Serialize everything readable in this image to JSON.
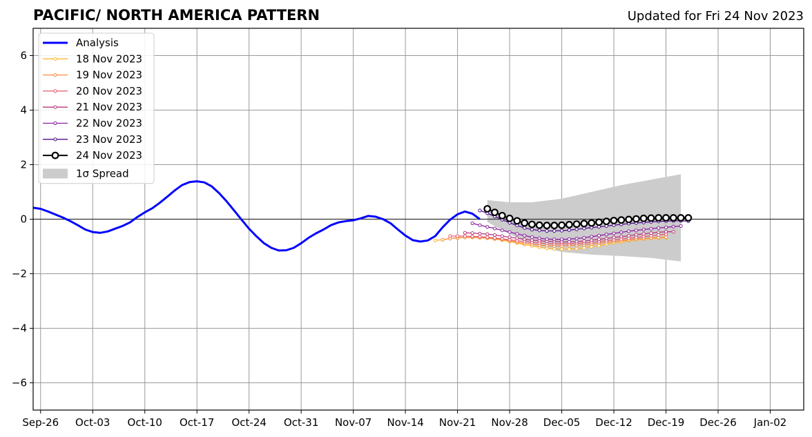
{
  "chart_data": {
    "type": "line",
    "title": "PACIFIC/ NORTH AMERICA PATTERN",
    "subtitle": "Updated for Fri 24 Nov 2023",
    "xlabel": "",
    "ylabel": "",
    "x_ticks": [
      "Sep-26",
      "Oct-03",
      "Oct-10",
      "Oct-17",
      "Oct-24",
      "Oct-31",
      "Nov-07",
      "Nov-14",
      "Nov-21",
      "Nov-28",
      "Dec-05",
      "Dec-12",
      "Dec-19",
      "Dec-26",
      "Jan-02"
    ],
    "x_tick_days": [
      0,
      7,
      14,
      21,
      28,
      35,
      42,
      49,
      56,
      63,
      70,
      77,
      84,
      91,
      98
    ],
    "xlim_days": [
      -1,
      102.5
    ],
    "y_ticks": [
      "−6",
      "−4",
      "−2",
      "0",
      "2",
      "4",
      "6"
    ],
    "y_tick_values": [
      -6,
      -4,
      -2,
      0,
      2,
      4,
      6
    ],
    "ylim": [
      -7,
      7
    ],
    "grid": true,
    "legend_position": "top-left",
    "spread": {
      "name": "1σ Spread",
      "color": "#cccccc",
      "x_days": [
        60,
        63,
        66,
        70,
        74,
        78,
        82,
        86
      ],
      "upper": [
        0.7,
        0.62,
        0.62,
        0.75,
        1.0,
        1.25,
        1.45,
        1.65
      ],
      "lower": [
        -0.1,
        -0.55,
        -0.95,
        -1.2,
        -1.3,
        -1.35,
        -1.42,
        -1.55
      ]
    },
    "series": [
      {
        "name": "Analysis",
        "color": "#0000ff",
        "style": "analysis",
        "x_days": [
          -1,
          0,
          1,
          2,
          3,
          4,
          5,
          6,
          7,
          8,
          9,
          10,
          11,
          12,
          13,
          14,
          15,
          16,
          17,
          18,
          19,
          20,
          21,
          22,
          23,
          24,
          25,
          26,
          27,
          28,
          29,
          30,
          31,
          32,
          33,
          34,
          35,
          36,
          37,
          38,
          39,
          40,
          41,
          42,
          43,
          44,
          45,
          46,
          47,
          48,
          49,
          50,
          51,
          52,
          53,
          54,
          55,
          56,
          57,
          58,
          59
        ],
        "y": [
          0.42,
          0.38,
          0.28,
          0.17,
          0.06,
          -0.07,
          -0.22,
          -0.38,
          -0.47,
          -0.5,
          -0.45,
          -0.35,
          -0.25,
          -0.12,
          0.08,
          0.25,
          0.4,
          0.6,
          0.82,
          1.05,
          1.25,
          1.36,
          1.39,
          1.35,
          1.2,
          0.95,
          0.65,
          0.32,
          -0.02,
          -0.35,
          -0.63,
          -0.88,
          -1.05,
          -1.15,
          -1.14,
          -1.05,
          -0.88,
          -0.68,
          -0.52,
          -0.38,
          -0.22,
          -0.12,
          -0.07,
          -0.04,
          0.03,
          0.12,
          0.09,
          0.0,
          -0.15,
          -0.38,
          -0.6,
          -0.77,
          -0.82,
          -0.78,
          -0.62,
          -0.3,
          -0.02,
          0.18,
          0.28,
          0.2,
          -0.0
        ]
      },
      {
        "name": "18 Nov 2023",
        "color": "#fdb632",
        "style": "forecast",
        "x_days": [
          53,
          54,
          55,
          56,
          57,
          58,
          59,
          60,
          61,
          62,
          63,
          64,
          65,
          66,
          67,
          68,
          69,
          70,
          71,
          72,
          73,
          74,
          75,
          76,
          77,
          78,
          79,
          80,
          81,
          82,
          83,
          84
        ],
        "y": [
          -0.78,
          -0.75,
          -0.71,
          -0.69,
          -0.67,
          -0.67,
          -0.68,
          -0.7,
          -0.73,
          -0.77,
          -0.82,
          -0.88,
          -0.93,
          -0.98,
          -1.03,
          -1.07,
          -1.09,
          -1.1,
          -1.1,
          -1.08,
          -1.05,
          -1.01,
          -0.97,
          -0.92,
          -0.87,
          -0.83,
          -0.79,
          -0.76,
          -0.73,
          -0.71,
          -0.69,
          -0.68
        ]
      },
      {
        "name": "19 Nov 2023",
        "color": "#f78b3e",
        "style": "forecast",
        "x_days": [
          54,
          55,
          56,
          57,
          58,
          59,
          60,
          61,
          62,
          63,
          64,
          65,
          66,
          67,
          68,
          69,
          70,
          71,
          72,
          73,
          74,
          75,
          76,
          77,
          78,
          79,
          80,
          81,
          82,
          83,
          84
        ],
        "y": [
          -0.75,
          -0.71,
          -0.68,
          -0.67,
          -0.66,
          -0.67,
          -0.69,
          -0.72,
          -0.75,
          -0.79,
          -0.84,
          -0.88,
          -0.92,
          -0.95,
          -0.97,
          -0.98,
          -0.98,
          -0.97,
          -0.96,
          -0.94,
          -0.91,
          -0.88,
          -0.85,
          -0.82,
          -0.79,
          -0.76,
          -0.73,
          -0.71,
          -0.69,
          -0.67,
          -0.66
        ]
      },
      {
        "name": "20 Nov 2023",
        "color": "#e2586a",
        "style": "forecast",
        "x_days": [
          55,
          56,
          57,
          58,
          59,
          60,
          61,
          62,
          63,
          64,
          65,
          66,
          67,
          68,
          69,
          70,
          71,
          72,
          73,
          74,
          75,
          76,
          77,
          78,
          79,
          80,
          81,
          82,
          83,
          84
        ],
        "y": [
          -0.62,
          -0.62,
          -0.62,
          -0.63,
          -0.64,
          -0.66,
          -0.69,
          -0.72,
          -0.75,
          -0.79,
          -0.82,
          -0.85,
          -0.87,
          -0.89,
          -0.9,
          -0.9,
          -0.9,
          -0.89,
          -0.87,
          -0.85,
          -0.82,
          -0.79,
          -0.76,
          -0.73,
          -0.7,
          -0.67,
          -0.64,
          -0.61,
          -0.58,
          -0.55
        ]
      },
      {
        "name": "21 Nov 2023",
        "color": "#b7367a",
        "style": "forecast",
        "x_days": [
          57,
          58,
          59,
          60,
          61,
          62,
          63,
          64,
          65,
          66,
          67,
          68,
          69,
          70,
          71,
          72,
          73,
          74,
          75,
          76,
          77,
          78,
          79,
          80,
          81,
          82,
          83,
          84,
          85
        ],
        "y": [
          -0.5,
          -0.51,
          -0.53,
          -0.55,
          -0.58,
          -0.62,
          -0.66,
          -0.7,
          -0.74,
          -0.77,
          -0.79,
          -0.81,
          -0.82,
          -0.83,
          -0.83,
          -0.82,
          -0.8,
          -0.77,
          -0.74,
          -0.71,
          -0.67,
          -0.64,
          -0.61,
          -0.57,
          -0.54,
          -0.51,
          -0.48,
          -0.46,
          -0.46
        ]
      },
      {
        "name": "22 Nov 2023",
        "color": "#8c1ea0",
        "style": "forecast",
        "x_days": [
          58,
          59,
          60,
          61,
          62,
          63,
          64,
          65,
          66,
          67,
          68,
          69,
          70,
          71,
          72,
          73,
          74,
          75,
          76,
          77,
          78,
          79,
          80,
          81,
          82,
          83,
          84,
          85,
          86
        ],
        "y": [
          -0.15,
          -0.22,
          -0.28,
          -0.34,
          -0.41,
          -0.47,
          -0.54,
          -0.6,
          -0.66,
          -0.7,
          -0.73,
          -0.74,
          -0.74,
          -0.73,
          -0.71,
          -0.68,
          -0.64,
          -0.6,
          -0.56,
          -0.52,
          -0.48,
          -0.44,
          -0.41,
          -0.38,
          -0.35,
          -0.32,
          -0.3,
          -0.27,
          -0.25
        ]
      },
      {
        "name": "23 Nov 2023",
        "color": "#4b0c8c",
        "style": "forecast",
        "x_days": [
          59,
          60,
          61,
          62,
          63,
          64,
          65,
          66,
          67,
          68,
          69,
          70,
          71,
          72,
          73,
          74,
          75,
          76,
          77,
          78,
          79,
          80,
          81,
          82,
          83,
          84,
          85,
          86,
          87
        ],
        "y": [
          0.32,
          0.22,
          0.1,
          -0.02,
          -0.13,
          -0.23,
          -0.32,
          -0.38,
          -0.41,
          -0.43,
          -0.43,
          -0.42,
          -0.4,
          -0.37,
          -0.34,
          -0.31,
          -0.28,
          -0.25,
          -0.22,
          -0.19,
          -0.16,
          -0.14,
          -0.12,
          -0.1,
          -0.08,
          -0.07,
          -0.06,
          -0.06,
          -0.07
        ]
      },
      {
        "name": "24 Nov 2023",
        "color": "#000000",
        "style": "current",
        "x_days": [
          60,
          61,
          62,
          63,
          64,
          65,
          66,
          67,
          68,
          69,
          70,
          71,
          72,
          73,
          74,
          75,
          76,
          77,
          78,
          79,
          80,
          81,
          82,
          83,
          84,
          85,
          86,
          87
        ],
        "y": [
          0.38,
          0.25,
          0.13,
          0.03,
          -0.06,
          -0.14,
          -0.19,
          -0.22,
          -0.23,
          -0.23,
          -0.22,
          -0.2,
          -0.18,
          -0.16,
          -0.14,
          -0.11,
          -0.08,
          -0.05,
          -0.03,
          -0.01,
          0.01,
          0.03,
          0.04,
          0.05,
          0.05,
          0.05,
          0.05,
          0.05
        ]
      }
    ]
  }
}
